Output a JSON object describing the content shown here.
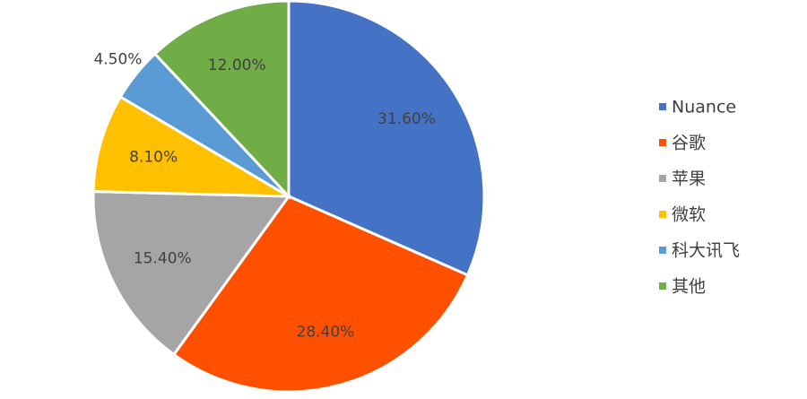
{
  "chart_data": {
    "type": "pie",
    "categories": [
      "Nuance",
      "谷歌",
      "苹果",
      "微软",
      "科大讯飞",
      "其他"
    ],
    "values": [
      31.6,
      28.4,
      15.4,
      8.1,
      4.5,
      12.0
    ],
    "value_labels": [
      "31.60%",
      "28.40%",
      "15.40%",
      "8.10%",
      "4.50%",
      "12.00%"
    ],
    "colors": [
      "#4472c4",
      "#ff5000",
      "#a5a5a5",
      "#ffc000",
      "#5b9bd5",
      "#70ad47"
    ],
    "legend": "right"
  }
}
